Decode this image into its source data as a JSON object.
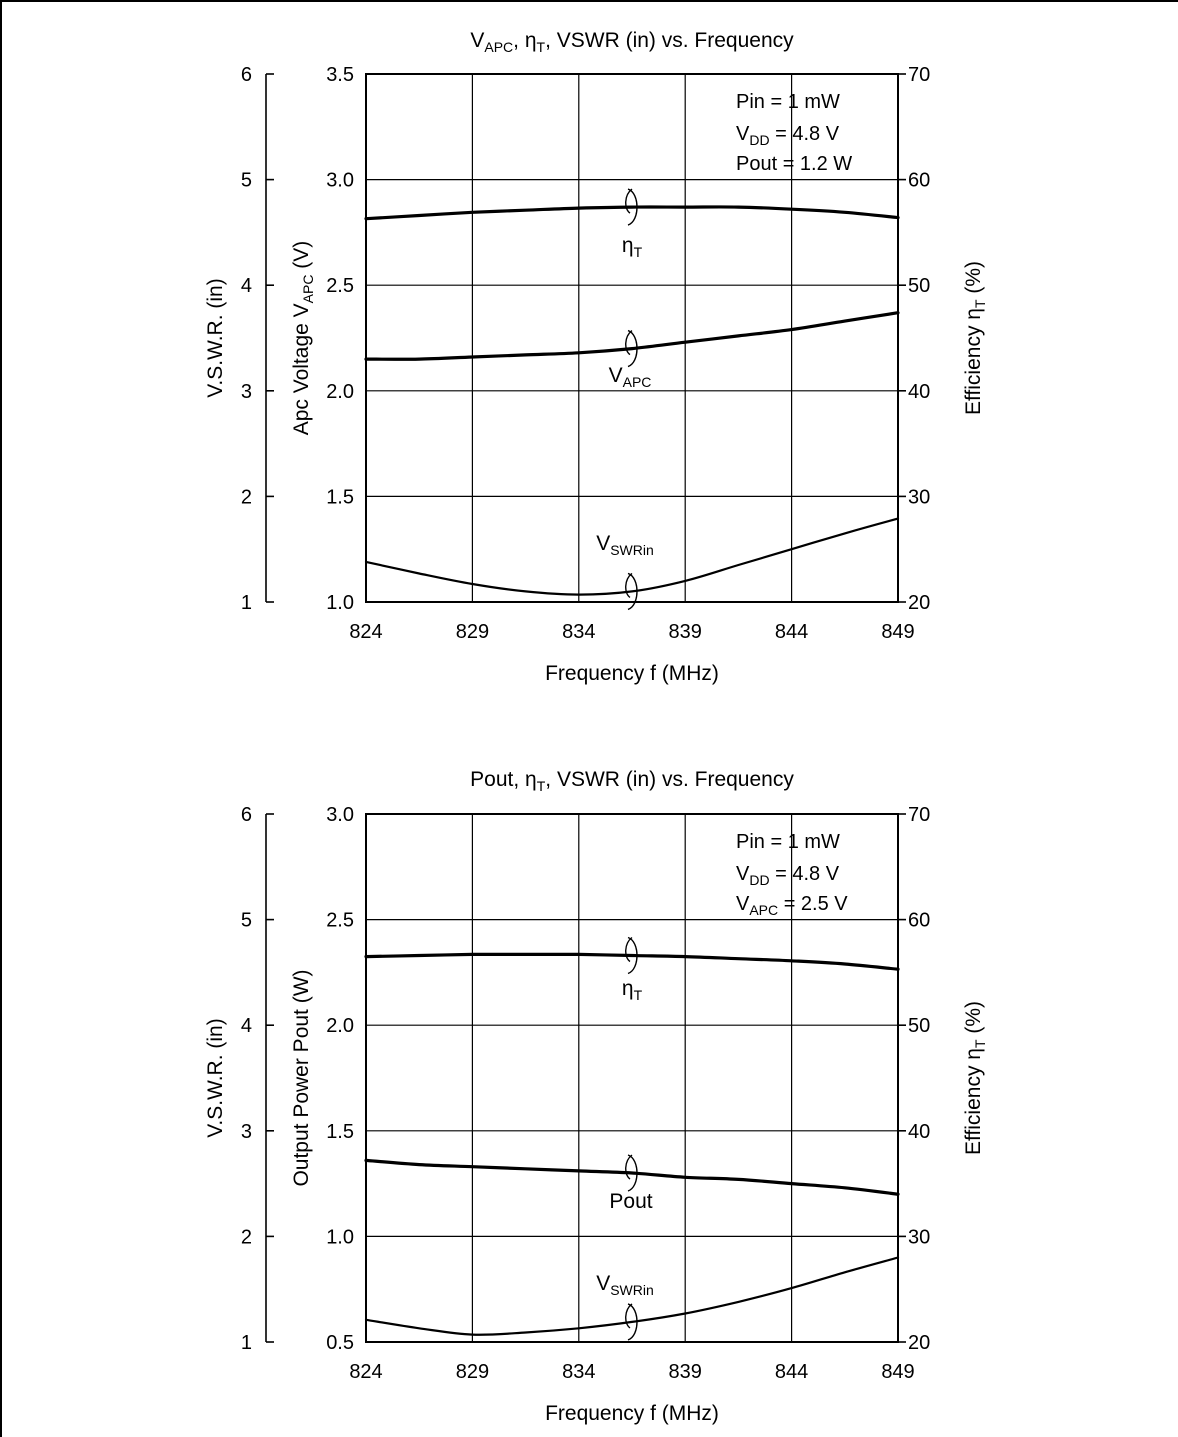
{
  "chart_data": [
    {
      "type": "line",
      "title": "V<sub>APC</sub>, η<sub>T</sub>, VSWR (in) vs. Frequency",
      "xlabel": "Frequency  f  (MHz)",
      "ylabel_primary": "Apc Voltage  V<sub>APC</sub>  (V)",
      "ylabel_left_outer": "V.S.W.R. (in)",
      "ylabel_right": "Efficiency  η<sub>T</sub>  (%)",
      "xlim": [
        824,
        849
      ],
      "ylim_primary": [
        1.0,
        3.5
      ],
      "ylim_vswr": [
        1,
        6
      ],
      "ylim_eff": [
        20,
        70
      ],
      "x_ticks": [
        "824",
        "829",
        "834",
        "839",
        "844",
        "849"
      ],
      "y_ticks_primary": [
        "1.0",
        "1.5",
        "2.0",
        "2.5",
        "3.0",
        "3.5"
      ],
      "y_ticks_vswr": [
        "1",
        "2",
        "3",
        "4",
        "5",
        "6"
      ],
      "y_ticks_eff": [
        "20",
        "30",
        "40",
        "50",
        "60",
        "70"
      ],
      "grid": true,
      "conditions": [
        "Pin = 1 mW",
        "V<sub>DD</sub> = 4.8 V",
        "Pout = 1.2 W"
      ],
      "series": [
        {
          "name": "η<sub>T</sub>",
          "axis": "efficiency",
          "x": [
            824,
            826.5,
            829,
            831.5,
            834,
            836.5,
            839,
            841.5,
            844,
            846.5,
            849
          ],
          "values": [
            56.3,
            56.6,
            56.9,
            57.1,
            57.3,
            57.4,
            57.4,
            57.4,
            57.2,
            56.9,
            56.4
          ]
        },
        {
          "name": "V<sub>APC</sub>",
          "axis": "primary",
          "x": [
            824,
            826.5,
            829,
            831.5,
            834,
            836.5,
            839,
            841.5,
            844,
            846.5,
            849
          ],
          "values": [
            2.15,
            2.15,
            2.16,
            2.17,
            2.18,
            2.2,
            2.23,
            2.26,
            2.29,
            2.33,
            2.37
          ]
        },
        {
          "name": "V<sub>SWRin</sub>",
          "axis": "vswr",
          "x": [
            824,
            826.5,
            829,
            831.5,
            834,
            836.5,
            839,
            841.5,
            844,
            846.5,
            849
          ],
          "values": [
            1.38,
            1.27,
            1.17,
            1.1,
            1.07,
            1.1,
            1.2,
            1.35,
            1.5,
            1.65,
            1.79
          ]
        }
      ],
      "curve_labels": [
        {
          "text": "η<sub>T</sub>",
          "series": "η<sub>T</sub>"
        },
        {
          "text": "V<sub>APC</sub>",
          "series": "V<sub>APC</sub>"
        },
        {
          "text": "V<sub>SWRin</sub>",
          "series": "V<sub>SWRin</sub>"
        }
      ]
    },
    {
      "type": "line",
      "title": "Pout, η<sub>T</sub>, VSWR (in) vs. Frequency",
      "xlabel": "Frequency  f  (MHz)",
      "ylabel_primary": "Output Power  Pout  (W)",
      "ylabel_left_outer": "V.S.W.R. (in)",
      "ylabel_right": "Efficiency  η<sub>T</sub>  (%)",
      "xlim": [
        824,
        849
      ],
      "ylim_primary": [
        0.5,
        3.0
      ],
      "ylim_vswr": [
        1,
        6
      ],
      "ylim_eff": [
        20,
        70
      ],
      "x_ticks": [
        "824",
        "829",
        "834",
        "839",
        "844",
        "849"
      ],
      "y_ticks_primary": [
        "0.5",
        "1.0",
        "1.5",
        "2.0",
        "2.5",
        "3.0"
      ],
      "y_ticks_vswr": [
        "1",
        "2",
        "3",
        "4",
        "5",
        "6"
      ],
      "y_ticks_eff": [
        "20",
        "30",
        "40",
        "50",
        "60",
        "70"
      ],
      "grid": true,
      "conditions": [
        "Pin = 1 mW",
        "V<sub>DD</sub> = 4.8 V",
        "V<sub>APC</sub> = 2.5 V"
      ],
      "series": [
        {
          "name": "η<sub>T</sub>",
          "axis": "efficiency",
          "x": [
            824,
            826.5,
            829,
            831.5,
            834,
            836.5,
            839,
            841.5,
            844,
            846.5,
            849
          ],
          "values": [
            56.5,
            56.6,
            56.7,
            56.7,
            56.7,
            56.6,
            56.5,
            56.3,
            56.1,
            55.8,
            55.3
          ]
        },
        {
          "name": "Pout",
          "axis": "primary",
          "x": [
            824,
            826.5,
            829,
            831.5,
            834,
            836.5,
            839,
            841.5,
            844,
            846.5,
            849
          ],
          "values": [
            1.36,
            1.34,
            1.33,
            1.32,
            1.31,
            1.3,
            1.28,
            1.27,
            1.25,
            1.23,
            1.2
          ]
        },
        {
          "name": "V<sub>SWRin</sub>",
          "axis": "vswr",
          "x": [
            824,
            826.5,
            829,
            831.5,
            834,
            836.5,
            839,
            841.5,
            844,
            846.5,
            849
          ],
          "values": [
            1.21,
            1.13,
            1.07,
            1.09,
            1.13,
            1.19,
            1.27,
            1.38,
            1.51,
            1.66,
            1.8
          ]
        }
      ],
      "curve_labels": [
        {
          "text": "η<sub>T</sub>",
          "series": "η<sub>T</sub>"
        },
        {
          "text": "Pout",
          "series": "Pout"
        },
        {
          "text": "V<sub>SWRin</sub>",
          "series": "V<sub>SWRin</sub>"
        }
      ]
    }
  ]
}
